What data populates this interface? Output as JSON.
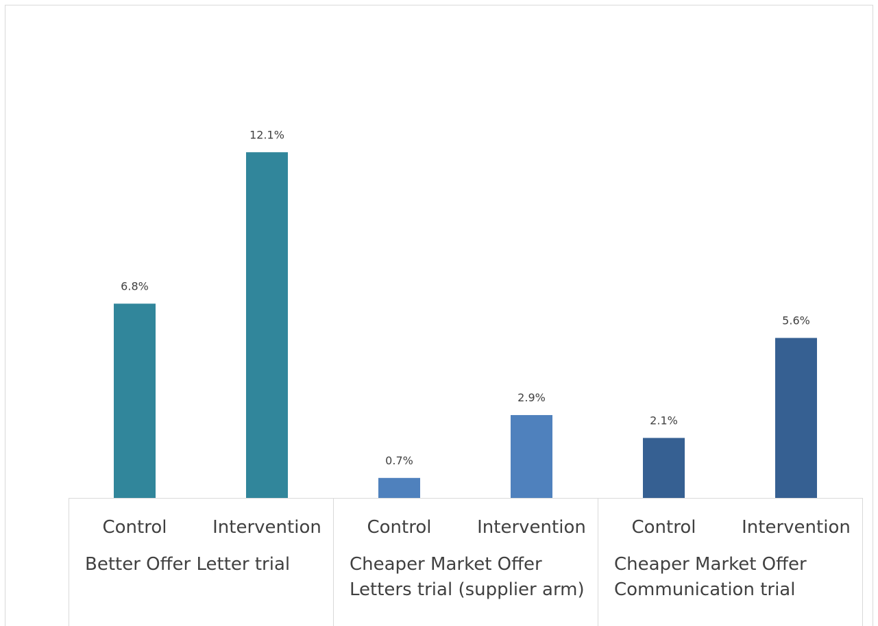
{
  "chart_data": {
    "type": "bar",
    "groups": [
      {
        "name": "Better Offer Letter trial",
        "color": "#31869b",
        "categories": [
          "Control",
          "Intervention"
        ],
        "values": [
          6.8,
          12.1
        ],
        "value_labels": [
          "6.8%",
          "12.1%"
        ]
      },
      {
        "name": "Cheaper Market Offer Letters trial (supplier arm)",
        "color": "#4f81bd",
        "categories": [
          "Control",
          "Intervention"
        ],
        "values": [
          0.7,
          2.9
        ],
        "value_labels": [
          "0.7%",
          "2.9%"
        ]
      },
      {
        "name": "Cheaper Market Offer Communication trial",
        "color": "#366092",
        "categories": [
          "Control",
          "Intervention"
        ],
        "values": [
          2.1,
          5.6
        ],
        "value_labels": [
          "2.1%",
          "5.6%"
        ]
      }
    ],
    "ylim": [
      0,
      14
    ]
  }
}
